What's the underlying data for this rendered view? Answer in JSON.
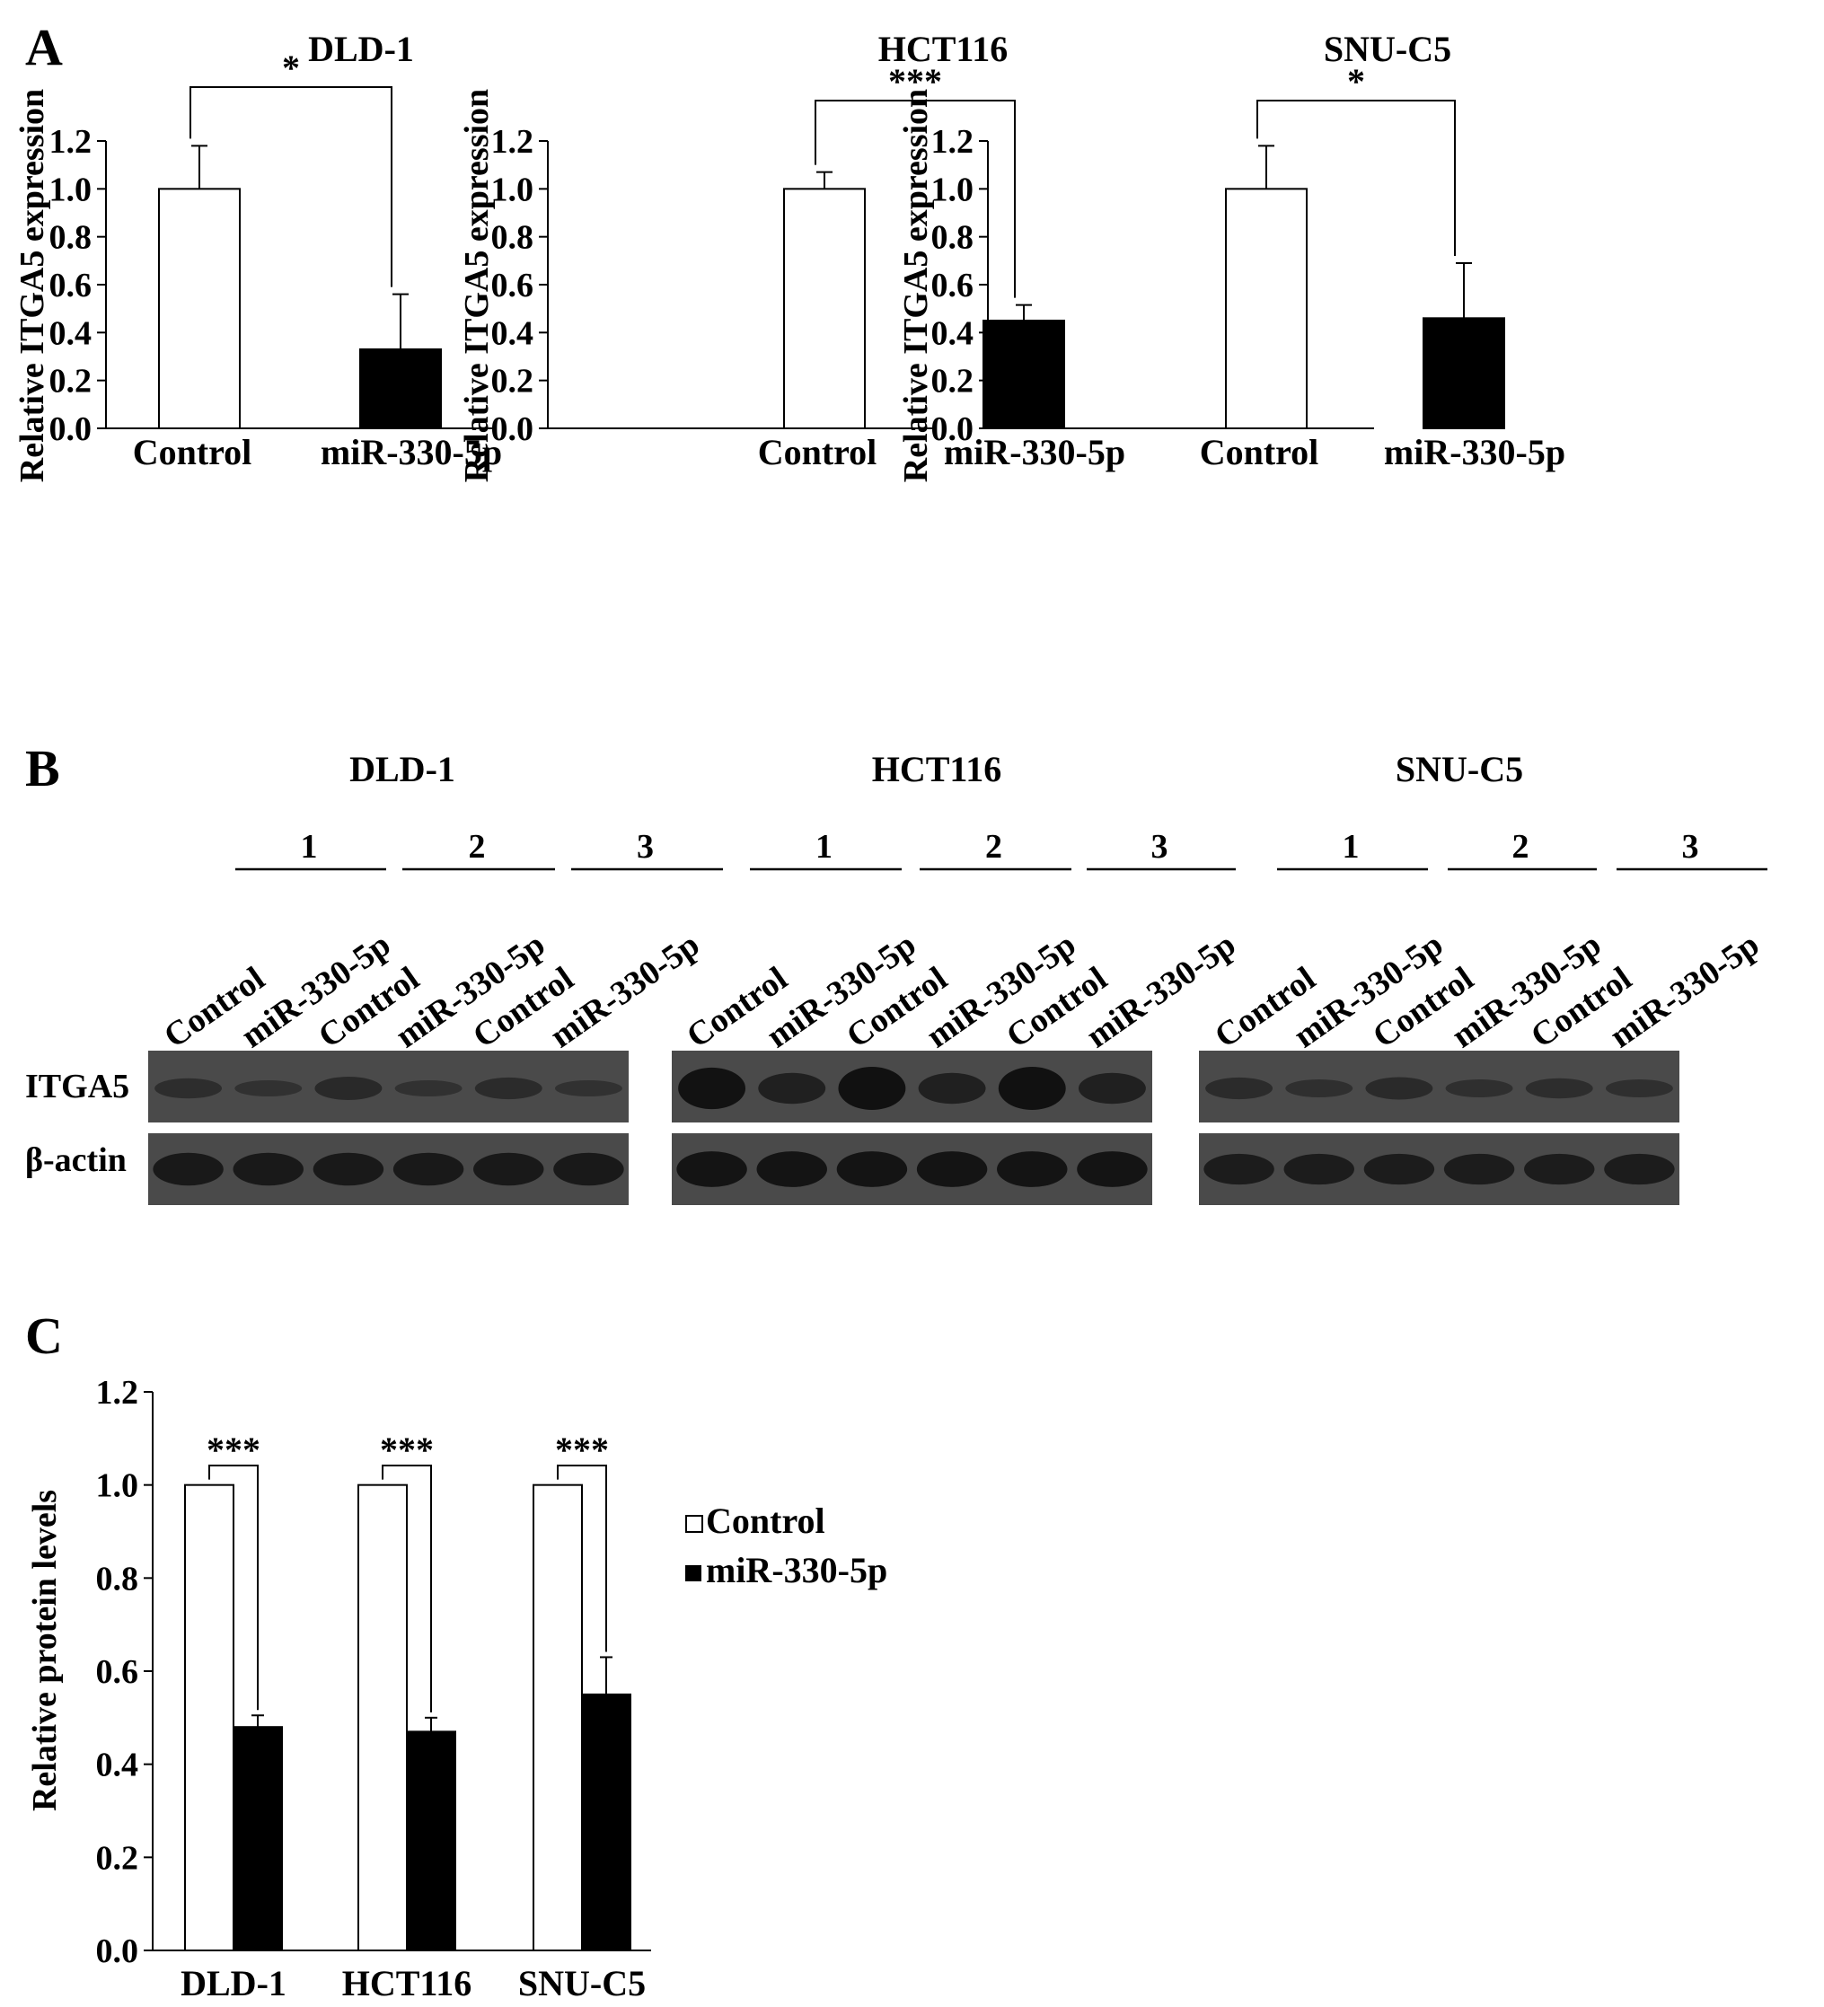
{
  "panel_a": {
    "letter": "A",
    "ylabel": "Relative ITGA5 expression",
    "yticks": [
      "0.0",
      "0.2",
      "0.4",
      "0.6",
      "0.8",
      "1.0",
      "1.2"
    ]
  },
  "panel_b": {
    "letter": "B",
    "row_labels": [
      "ITGA5",
      "β-actin"
    ],
    "groups": [
      {
        "title": "DLD-1",
        "replicates": [
          "1",
          "2",
          "3"
        ],
        "lanes": [
          "Control",
          "miR-330-5p",
          "Control",
          "miR-330-5p",
          "Control",
          "miR-330-5p"
        ]
      },
      {
        "title": "HCT116",
        "replicates": [
          "1",
          "2",
          "3"
        ],
        "lanes": [
          "Control",
          "miR-330-5p",
          "Control",
          "miR-330-5p",
          "Control",
          "miR-330-5p"
        ]
      },
      {
        "title": "SNU-C5",
        "replicates": [
          "1",
          "2",
          "3"
        ],
        "lanes": [
          "Control",
          "miR-330-5p",
          "Control",
          "miR-330-5p",
          "Control",
          "miR-330-5p"
        ]
      }
    ],
    "band_intensity": {
      "itga5": [
        [
          0.25,
          0.12,
          0.35,
          0.12,
          0.3,
          0.12
        ],
        [
          0.95,
          0.6,
          1.0,
          0.6,
          1.0,
          0.6
        ],
        [
          0.3,
          0.18,
          0.32,
          0.18,
          0.25,
          0.18
        ]
      ],
      "actin": [
        [
          0.75,
          0.75,
          0.75,
          0.75,
          0.75,
          0.75
        ],
        [
          0.9,
          0.9,
          0.9,
          0.9,
          0.9,
          0.9
        ],
        [
          0.65,
          0.65,
          0.65,
          0.65,
          0.65,
          0.65
        ]
      ]
    },
    "colors": {
      "blot_bg": "#4a4a4a",
      "band": "#111111"
    }
  },
  "panel_c": {
    "letter": "C",
    "legend": [
      "Control",
      "miR-330-5p"
    ]
  },
  "chart_data": [
    {
      "type": "bar",
      "panel": "A",
      "title": "DLD-1",
      "categories": [
        "Control",
        "miR-330-5p"
      ],
      "values": [
        1.0,
        0.33
      ],
      "errors": [
        0.18,
        0.23
      ],
      "ylabel": "Relative ITGA5 expression",
      "ylim": [
        0,
        1.2
      ],
      "significance": "*",
      "colors": [
        "#ffffff",
        "#000000"
      ]
    },
    {
      "type": "bar",
      "panel": "A",
      "title": "HCT116",
      "categories": [
        "Control",
        "miR-330-5p"
      ],
      "values": [
        1.0,
        0.45
      ],
      "errors": [
        0.07,
        0.065
      ],
      "ylabel": "Relative ITGA5 expression",
      "ylim": [
        0,
        1.2
      ],
      "significance": "***",
      "colors": [
        "#ffffff",
        "#000000"
      ]
    },
    {
      "type": "bar",
      "panel": "A",
      "title": "SNU-C5",
      "categories": [
        "Control",
        "miR-330-5p"
      ],
      "values": [
        1.0,
        0.46
      ],
      "errors": [
        0.18,
        0.23
      ],
      "ylabel": "Relative ITGA5 expression",
      "ylim": [
        0,
        1.2
      ],
      "significance": "*",
      "colors": [
        "#ffffff",
        "#000000"
      ]
    },
    {
      "type": "bar",
      "panel": "C",
      "categories": [
        "DLD-1",
        "HCT116",
        "SNU-C5"
      ],
      "series": [
        {
          "name": "Control",
          "values": [
            1.0,
            1.0,
            1.0
          ],
          "errors": [
            0,
            0,
            0
          ],
          "color": "#ffffff"
        },
        {
          "name": "miR-330-5p",
          "values": [
            0.48,
            0.47,
            0.55
          ],
          "errors": [
            0.025,
            0.03,
            0.08
          ],
          "color": "#000000"
        }
      ],
      "ylabel": "Relative protein levels",
      "ylim": [
        0,
        1.2
      ],
      "yticks": [
        "0.0",
        "0.2",
        "0.4",
        "0.6",
        "0.8",
        "1.0",
        "1.2"
      ],
      "significance": [
        "***",
        "***",
        "***"
      ],
      "legend_position": "right"
    }
  ]
}
